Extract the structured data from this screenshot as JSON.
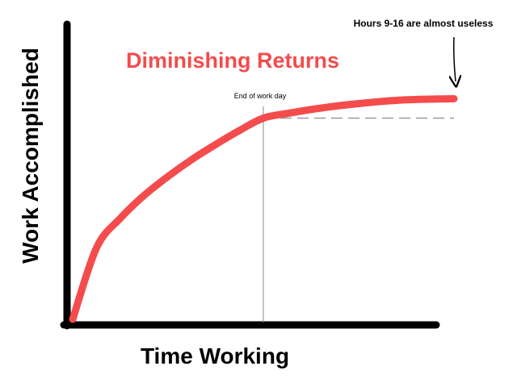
{
  "chart_data": {
    "type": "line",
    "title": "Diminishing Returns",
    "xlabel": "Time Working",
    "ylabel": "Work Accomplished",
    "grid": false,
    "legend": "none",
    "series": [
      {
        "x": [
          0,
          1,
          2,
          3,
          4,
          5,
          6,
          7,
          8,
          9,
          10,
          11,
          12,
          13,
          14,
          15,
          16
        ],
        "values": [
          0,
          32.5,
          45.9,
          56.3,
          64.9,
          72.6,
          79.4,
          85.8,
          91.4,
          93.5,
          95.3,
          96.8,
          98.0,
          99.0,
          99.7,
          100.0,
          100.2
        ]
      }
    ],
    "xlim": [
      0,
      16
    ],
    "ylim": [
      0,
      100
    ],
    "annotations": {
      "end_of_work_day": {
        "label": "End of work day",
        "x": 8
      },
      "useless_note": {
        "label": "Hours 9-16 are almost useless"
      }
    },
    "colors": {
      "curve": "#f44c4c",
      "title": "#f44c4c",
      "axes": "#000000",
      "reference": "#999999"
    }
  }
}
